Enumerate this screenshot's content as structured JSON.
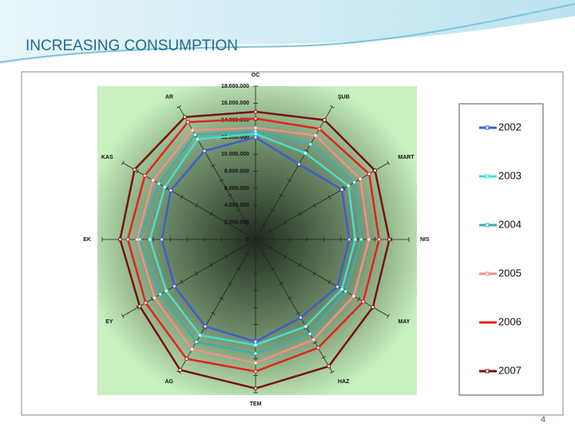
{
  "slide_title": "INCREASING CONSUMPTION",
  "page_number": "4",
  "chart_data": {
    "type": "radar",
    "categories": [
      "OC",
      "ŞUB",
      "MART",
      "NIS",
      "MAY",
      "HAZ",
      "TEM",
      "AG",
      "EY",
      "EK",
      "KAS",
      "AR"
    ],
    "ylim": [
      0,
      18000000
    ],
    "yticks": [
      0,
      {
        "value": 2000000,
        "label": "2.000.000"
      },
      {
        "value": 4000000,
        "label": "4.000.000"
      },
      {
        "value": 6000000,
        "label": "6.000.000"
      },
      {
        "value": 8000000,
        "label": "8.000.000"
      },
      {
        "value": 10000000,
        "label": "10.000.000"
      },
      {
        "value": 12000000,
        "label": "12.000.000"
      },
      {
        "value": 14000000,
        "label": "14.000.000"
      },
      {
        "value": 16000000,
        "label": "16.000.000"
      },
      {
        "value": 18000000,
        "label": "18.000.000"
      }
    ],
    "legend": "right",
    "series": [
      {
        "name": "2002",
        "color": "#3a5fd0",
        "values": [
          12000000,
          10200000,
          11700000,
          11000000,
          11100000,
          10600000,
          12000000,
          11800000,
          11000000,
          11000000,
          11500000,
          12000000
        ]
      },
      {
        "name": "2003",
        "color": "#40e0d8",
        "values": [
          12400000,
          11700000,
          12600000,
          11700000,
          11700000,
          11800000,
          12400000,
          13000000,
          12100000,
          12400000,
          12300000,
          13600000
        ]
      },
      {
        "name": "2004",
        "color": "#38b0b0",
        "values": [
          12700000,
          12900000,
          13400000,
          12400000,
          12200000,
          12800000,
          13400000,
          13900000,
          12900000,
          13600000,
          13100000,
          14200000
        ]
      },
      {
        "name": "2005",
        "color": "#f0908a",
        "values": [
          13100000,
          14100000,
          14200000,
          13300000,
          13300000,
          13600000,
          14500000,
          14900000,
          13700000,
          13900000,
          13900000,
          14800000
        ]
      },
      {
        "name": "2006",
        "color": "#e8201a",
        "values": [
          14200000,
          15000000,
          15400000,
          14500000,
          14600000,
          14700000,
          15500000,
          16200000,
          14900000,
          15000000,
          15000000,
          15900000
        ]
      },
      {
        "name": "2007",
        "color": "#7a1010",
        "values": [
          15000000,
          16200000,
          16200000,
          15700000,
          15900000,
          17200000,
          17500000,
          17700000,
          15700000,
          15900000,
          16400000,
          16600000
        ]
      }
    ]
  }
}
